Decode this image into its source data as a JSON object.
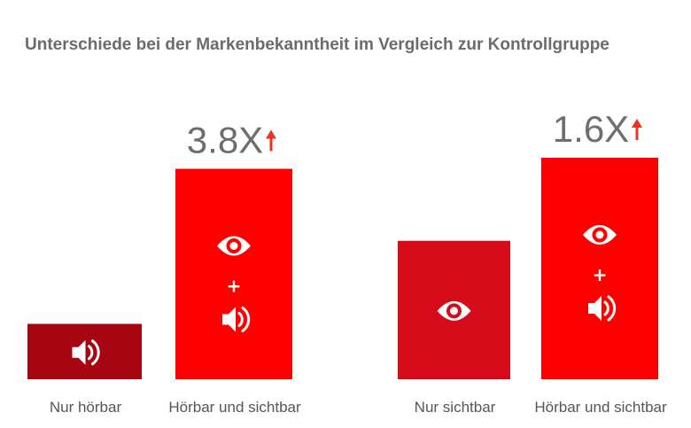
{
  "chart_data": {
    "type": "bar",
    "title": "Unterschiede bei der Markenbekanntheit im Vergleich zur Kontrollgruppe",
    "groups": [
      {
        "bars": [
          {
            "category": "Nur hörbar",
            "value": 1.0,
            "color": "#a50612",
            "icons": [
              "speaker-icon"
            ]
          },
          {
            "category": "Hörbar und sichtbar",
            "value": 3.8,
            "color": "#ff0000",
            "icons": [
              "eye-icon",
              "plus-icon",
              "speaker-icon"
            ],
            "annotation": "3.8X",
            "annotation_icon": "arrow-up-icon"
          }
        ]
      },
      {
        "bars": [
          {
            "category": "Nur sichtbar",
            "value": 2.5,
            "color": "#d50b1a",
            "icons": [
              "eye-icon"
            ]
          },
          {
            "category": "Hörbar und sichtbar",
            "value": 4.0,
            "color": "#ff0000",
            "icons": [
              "eye-icon",
              "plus-icon",
              "speaker-icon"
            ],
            "annotation": "1.6X",
            "annotation_icon": "arrow-up-icon"
          }
        ]
      }
    ],
    "plus_symbol": "+",
    "accent_color": "#ea3323",
    "grid": false
  }
}
